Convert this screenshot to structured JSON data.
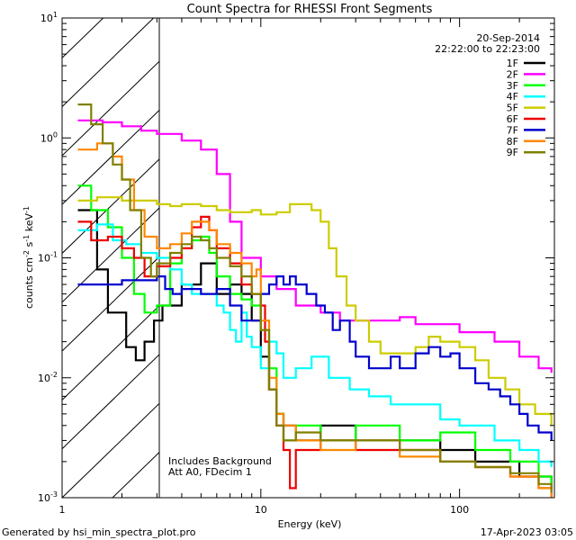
{
  "chart_data": {
    "type": "line",
    "title": "Count Spectra for RHESSI Front Segments",
    "xlabel": "Energy (keV)",
    "ylabel": "counts cm^-2 s^-1 keV^-1",
    "xscale": "log",
    "yscale": "log",
    "xlim": [
      1,
      300
    ],
    "ylim": [
      0.001,
      10
    ],
    "x_ticks": [
      "1",
      "10",
      "100"
    ],
    "y_ticks": [
      "10^-3",
      "10^-2",
      "10^-1",
      "10^0",
      "10^1"
    ],
    "date": "20-Sep-2014",
    "time_range": "22:22:00 to 22:23:00",
    "annotations": [
      "Includes Background",
      "Att A0, FDecim 1"
    ],
    "hatched_region_keV": [
      1,
      3
    ],
    "footer_left": "Generated by hsi_min_spectra_plot.pro",
    "footer_right": "17-Apr-2023 03:05",
    "series": [
      {
        "name": "1F",
        "color": "#000000",
        "points": [
          [
            1.2,
            0.25
          ],
          [
            1.5,
            0.08
          ],
          [
            1.7,
            0.035
          ],
          [
            1.9,
            0.035
          ],
          [
            2.1,
            0.018
          ],
          [
            2.35,
            0.014
          ],
          [
            2.6,
            0.02
          ],
          [
            2.9,
            0.03
          ],
          [
            3.2,
            0.04
          ],
          [
            4,
            0.06
          ],
          [
            5,
            0.09
          ],
          [
            6,
            0.05
          ],
          [
            7,
            0.06
          ],
          [
            8,
            0.05
          ],
          [
            9,
            0.03
          ],
          [
            10,
            0.015
          ],
          [
            11,
            0.008
          ],
          [
            12,
            0.005
          ],
          [
            13,
            0.004
          ],
          [
            15,
            0.003
          ],
          [
            20,
            0.004
          ],
          [
            30,
            0.003
          ],
          [
            50,
            0.003
          ],
          [
            80,
            0.0025
          ],
          [
            120,
            0.002
          ],
          [
            200,
            0.0015
          ],
          [
            290,
            0.0012
          ]
        ]
      },
      {
        "name": "2F",
        "color": "#ff00ff",
        "points": [
          [
            1.2,
            1.4
          ],
          [
            1.6,
            1.35
          ],
          [
            2,
            1.25
          ],
          [
            2.5,
            1.15
          ],
          [
            3,
            1.08
          ],
          [
            4,
            0.95
          ],
          [
            5,
            0.8
          ],
          [
            6,
            0.5
          ],
          [
            7,
            0.2
          ],
          [
            8,
            0.1
          ],
          [
            10,
            0.07
          ],
          [
            12,
            0.055
          ],
          [
            15,
            0.04
          ],
          [
            20,
            0.035
          ],
          [
            25,
            0.03
          ],
          [
            30,
            0.03
          ],
          [
            40,
            0.03
          ],
          [
            50,
            0.032
          ],
          [
            60,
            0.028
          ],
          [
            80,
            0.028
          ],
          [
            100,
            0.024
          ],
          [
            150,
            0.02
          ],
          [
            200,
            0.015
          ],
          [
            250,
            0.012
          ],
          [
            290,
            0.011
          ]
        ]
      },
      {
        "name": "3F",
        "color": "#00ff00",
        "points": [
          [
            1.2,
            0.4
          ],
          [
            1.4,
            0.25
          ],
          [
            1.7,
            0.18
          ],
          [
            2,
            0.1
          ],
          [
            2.3,
            0.05
          ],
          [
            2.6,
            0.035
          ],
          [
            3,
            0.04
          ],
          [
            3.5,
            0.09
          ],
          [
            4,
            0.12
          ],
          [
            4.5,
            0.14
          ],
          [
            5,
            0.15
          ],
          [
            5.5,
            0.11
          ],
          [
            6,
            0.07
          ],
          [
            7,
            0.05
          ],
          [
            8,
            0.045
          ],
          [
            9,
            0.04
          ],
          [
            10,
            0.025
          ],
          [
            11,
            0.012
          ],
          [
            12,
            0.005
          ],
          [
            13,
            0.003
          ],
          [
            15,
            0.004
          ],
          [
            20,
            0.003
          ],
          [
            30,
            0.004
          ],
          [
            50,
            0.003
          ],
          [
            80,
            0.0035
          ],
          [
            120,
            0.0025
          ],
          [
            180,
            0.002
          ],
          [
            250,
            0.0015
          ],
          [
            290,
            0.0012
          ]
        ]
      },
      {
        "name": "4F",
        "color": "#00ffff",
        "points": [
          [
            1.2,
            0.17
          ],
          [
            1.5,
            0.19
          ],
          [
            1.8,
            0.14
          ],
          [
            2.1,
            0.13
          ],
          [
            2.5,
            0.11
          ],
          [
            3,
            0.1
          ],
          [
            3.5,
            0.08
          ],
          [
            4,
            0.06
          ],
          [
            4.5,
            0.05
          ],
          [
            5,
            0.05
          ],
          [
            6,
            0.04
          ],
          [
            6.5,
            0.035
          ],
          [
            7,
            0.025
          ],
          [
            7.5,
            0.02
          ],
          [
            8,
            0.035
          ],
          [
            8.5,
            0.022
          ],
          [
            9,
            0.018
          ],
          [
            10,
            0.012
          ],
          [
            11,
            0.02
          ],
          [
            12,
            0.016
          ],
          [
            13,
            0.01
          ],
          [
            15,
            0.012
          ],
          [
            18,
            0.015
          ],
          [
            22,
            0.01
          ],
          [
            28,
            0.008
          ],
          [
            35,
            0.007
          ],
          [
            45,
            0.006
          ],
          [
            60,
            0.006
          ],
          [
            80,
            0.0045
          ],
          [
            100,
            0.004
          ],
          [
            150,
            0.003
          ],
          [
            200,
            0.0025
          ],
          [
            250,
            0.002
          ],
          [
            290,
            0.0018
          ]
        ]
      },
      {
        "name": "5F",
        "color": "#cccc00",
        "points": [
          [
            1.2,
            0.3
          ],
          [
            1.5,
            0.32
          ],
          [
            2,
            0.3
          ],
          [
            2.5,
            0.3
          ],
          [
            3,
            0.28
          ],
          [
            3.5,
            0.27
          ],
          [
            4,
            0.28
          ],
          [
            5,
            0.27
          ],
          [
            6,
            0.25
          ],
          [
            7,
            0.24
          ],
          [
            8,
            0.24
          ],
          [
            9,
            0.25
          ],
          [
            10,
            0.23
          ],
          [
            12,
            0.24
          ],
          [
            14,
            0.28
          ],
          [
            16,
            0.28
          ],
          [
            18,
            0.25
          ],
          [
            20,
            0.2
          ],
          [
            22,
            0.12
          ],
          [
            24,
            0.07
          ],
          [
            27,
            0.04
          ],
          [
            30,
            0.03
          ],
          [
            35,
            0.02
          ],
          [
            40,
            0.016
          ],
          [
            50,
            0.016
          ],
          [
            60,
            0.018
          ],
          [
            70,
            0.022
          ],
          [
            80,
            0.02
          ],
          [
            100,
            0.018
          ],
          [
            120,
            0.014
          ],
          [
            140,
            0.01
          ],
          [
            170,
            0.008
          ],
          [
            200,
            0.006
          ],
          [
            240,
            0.005
          ],
          [
            290,
            0.004
          ]
        ]
      },
      {
        "name": "6F",
        "color": "#ee0000",
        "points": [
          [
            1.2,
            0.2
          ],
          [
            1.4,
            0.14
          ],
          [
            1.7,
            0.15
          ],
          [
            2,
            0.12
          ],
          [
            2.3,
            0.1
          ],
          [
            2.6,
            0.07
          ],
          [
            3,
            0.085
          ],
          [
            3.5,
            0.1
          ],
          [
            4,
            0.12
          ],
          [
            4.5,
            0.18
          ],
          [
            5,
            0.22
          ],
          [
            5.5,
            0.17
          ],
          [
            6,
            0.12
          ],
          [
            7,
            0.09
          ],
          [
            8,
            0.06
          ],
          [
            9,
            0.05
          ],
          [
            10,
            0.04
          ],
          [
            10.5,
            0.02
          ],
          [
            11,
            0.008
          ],
          [
            12,
            0.004
          ],
          [
            13,
            0.0025
          ],
          [
            14,
            0.0012
          ],
          [
            15,
            0.0025
          ],
          [
            20,
            0.003
          ],
          [
            30,
            0.0025
          ],
          [
            50,
            0.0025
          ],
          [
            80,
            0.002
          ],
          [
            120,
            0.0018
          ],
          [
            180,
            0.0015
          ],
          [
            250,
            0.0012
          ],
          [
            290,
            0.001
          ]
        ]
      },
      {
        "name": "7F",
        "color": "#0000cc",
        "points": [
          [
            1.2,
            0.06
          ],
          [
            1.5,
            0.06
          ],
          [
            2,
            0.065
          ],
          [
            2.5,
            0.065
          ],
          [
            3,
            0.07
          ],
          [
            3.3,
            0.055
          ],
          [
            3.6,
            0.05
          ],
          [
            4,
            0.055
          ],
          [
            5,
            0.05
          ],
          [
            6,
            0.055
          ],
          [
            7,
            0.04
          ],
          [
            8,
            0.03
          ],
          [
            9,
            0.03
          ],
          [
            10,
            0.05
          ],
          [
            11,
            0.06
          ],
          [
            12,
            0.07
          ],
          [
            13,
            0.06
          ],
          [
            14,
            0.07
          ],
          [
            15,
            0.06
          ],
          [
            17,
            0.05
          ],
          [
            19,
            0.04
          ],
          [
            21,
            0.035
          ],
          [
            23,
            0.025
          ],
          [
            25,
            0.03
          ],
          [
            28,
            0.02
          ],
          [
            30,
            0.015
          ],
          [
            35,
            0.012
          ],
          [
            40,
            0.012
          ],
          [
            45,
            0.015
          ],
          [
            50,
            0.012
          ],
          [
            60,
            0.016
          ],
          [
            70,
            0.018
          ],
          [
            80,
            0.015
          ],
          [
            90,
            0.016
          ],
          [
            100,
            0.012
          ],
          [
            110,
            0.012
          ],
          [
            120,
            0.009
          ],
          [
            140,
            0.008
          ],
          [
            160,
            0.007
          ],
          [
            180,
            0.006
          ],
          [
            200,
            0.005
          ],
          [
            220,
            0.004
          ],
          [
            250,
            0.0035
          ],
          [
            290,
            0.003
          ]
        ]
      },
      {
        "name": "8F",
        "color": "#ff8800",
        "points": [
          [
            1.2,
            0.8
          ],
          [
            1.5,
            0.9
          ],
          [
            1.8,
            0.7
          ],
          [
            2,
            0.45
          ],
          [
            2.3,
            0.25
          ],
          [
            2.6,
            0.15
          ],
          [
            3,
            0.12
          ],
          [
            3.5,
            0.13
          ],
          [
            4,
            0.16
          ],
          [
            4.5,
            0.2
          ],
          [
            5,
            0.2
          ],
          [
            5.5,
            0.17
          ],
          [
            6,
            0.13
          ],
          [
            7,
            0.11
          ],
          [
            8,
            0.09
          ],
          [
            9,
            0.07
          ],
          [
            9.5,
            0.08
          ],
          [
            10,
            0.03
          ],
          [
            11,
            0.01
          ],
          [
            12,
            0.005
          ],
          [
            13,
            0.004
          ],
          [
            15,
            0.003
          ],
          [
            20,
            0.0025
          ],
          [
            30,
            0.003
          ],
          [
            50,
            0.0022
          ],
          [
            80,
            0.002
          ],
          [
            120,
            0.0018
          ],
          [
            180,
            0.0015
          ],
          [
            250,
            0.0012
          ],
          [
            290,
            0.001
          ]
        ]
      },
      {
        "name": "9F",
        "color": "#808000",
        "points": [
          [
            1.2,
            1.9
          ],
          [
            1.4,
            1.3
          ],
          [
            1.6,
            0.9
          ],
          [
            1.8,
            0.6
          ],
          [
            2,
            0.45
          ],
          [
            2.2,
            0.25
          ],
          [
            2.5,
            0.1
          ],
          [
            2.8,
            0.07
          ],
          [
            3,
            0.09
          ],
          [
            3.5,
            0.11
          ],
          [
            4,
            0.13
          ],
          [
            4.5,
            0.15
          ],
          [
            5,
            0.14
          ],
          [
            5.5,
            0.12
          ],
          [
            6,
            0.1
          ],
          [
            7,
            0.085
          ],
          [
            8,
            0.07
          ],
          [
            9,
            0.05
          ],
          [
            10,
            0.025
          ],
          [
            11,
            0.008
          ],
          [
            12,
            0.004
          ],
          [
            13,
            0.003
          ],
          [
            15,
            0.0035
          ],
          [
            20,
            0.003
          ],
          [
            30,
            0.003
          ],
          [
            50,
            0.0025
          ],
          [
            80,
            0.002
          ],
          [
            120,
            0.0018
          ],
          [
            180,
            0.0016
          ],
          [
            250,
            0.0013
          ],
          [
            290,
            0.0011
          ]
        ]
      }
    ]
  }
}
